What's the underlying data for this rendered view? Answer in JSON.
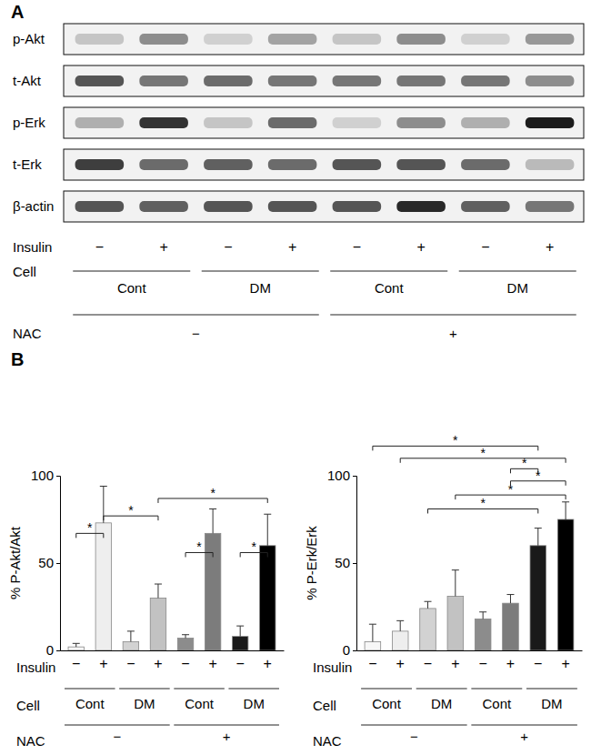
{
  "panels": [
    "A",
    "B"
  ],
  "blot": {
    "intensity_range": [
      0,
      100
    ],
    "rows": [
      {
        "label": "p-Akt",
        "intensity": [
          20,
          45,
          15,
          35,
          20,
          45,
          15,
          40
        ]
      },
      {
        "label": "t-Akt",
        "intensity": [
          70,
          55,
          60,
          55,
          55,
          55,
          55,
          45
        ]
      },
      {
        "label": "p-Erk",
        "intensity": [
          30,
          85,
          20,
          60,
          15,
          45,
          30,
          95
        ]
      },
      {
        "label": "t-Erk",
        "intensity": [
          80,
          60,
          65,
          60,
          70,
          70,
          60,
          25
        ]
      },
      {
        "label": "β-actin",
        "intensity": [
          70,
          65,
          70,
          70,
          70,
          90,
          65,
          55
        ]
      }
    ],
    "lane_rows": [
      {
        "label": "Insulin",
        "values": [
          "−",
          "+",
          "−",
          "+",
          "−",
          "+",
          "−",
          "+"
        ]
      },
      {
        "label": "Cell",
        "groups": [
          "Cont",
          "DM",
          "Cont",
          "DM"
        ]
      },
      {
        "label": "NAC",
        "groups": [
          "−",
          "+"
        ]
      }
    ]
  },
  "chart_data": [
    {
      "type": "bar",
      "ylabel": "% P-Akt/Akt",
      "xlabel": "Insulin",
      "categories": [
        "−",
        "+",
        "−",
        "+",
        "−",
        "+",
        "−",
        "+"
      ],
      "values": [
        2,
        73,
        5,
        30,
        7,
        67,
        8,
        60
      ],
      "errors": [
        2,
        21,
        6,
        8,
        2,
        14,
        6,
        18
      ],
      "colors": [
        "#f7f7f7",
        "#eeeeee",
        "#d2d2d2",
        "#c2c2c2",
        "#8c8c8c",
        "#7c7c7c",
        "#1a1a1a",
        "#000000"
      ],
      "ylim": [
        0,
        100
      ],
      "yticks": [
        0,
        50,
        100
      ],
      "x_groups": [
        {
          "label": "Cell",
          "names": [
            "Cont",
            "DM",
            "Cont",
            "DM"
          ]
        },
        {
          "label": "NAC",
          "names": [
            "−",
            "+"
          ]
        }
      ],
      "significance": [
        {
          "from": 0,
          "to": 1,
          "y": 67,
          "label": "*"
        },
        {
          "from": 1,
          "to": 3,
          "y": 77,
          "label": "*"
        },
        {
          "from": 3,
          "to": 7,
          "y": 87,
          "label": "*"
        },
        {
          "from": 4,
          "to": 5,
          "y": 56,
          "label": "*"
        },
        {
          "from": 6,
          "to": 7,
          "y": 56,
          "label": "*"
        }
      ]
    },
    {
      "type": "bar",
      "ylabel": "% P-Erk/Erk",
      "xlabel": "Insulin",
      "categories": [
        "−",
        "+",
        "−",
        "+",
        "−",
        "+",
        "−",
        "+"
      ],
      "values": [
        5,
        11,
        24,
        31,
        18,
        27,
        60,
        75
      ],
      "errors": [
        10,
        6,
        4,
        15,
        4,
        5,
        10,
        10
      ],
      "colors": [
        "#f7f7f7",
        "#eeeeee",
        "#d2d2d2",
        "#c2c2c2",
        "#8c8c8c",
        "#7c7c7c",
        "#1a1a1a",
        "#000000"
      ],
      "ylim": [
        0,
        100
      ],
      "yticks": [
        0,
        50,
        100
      ],
      "x_groups": [
        {
          "label": "Cell",
          "names": [
            "Cont",
            "DM",
            "Cont",
            "DM"
          ]
        },
        {
          "label": "NAC",
          "names": [
            "−",
            "+"
          ]
        }
      ],
      "significance": [
        {
          "from": 0,
          "to": 6,
          "y": 117,
          "label": "*"
        },
        {
          "from": 1,
          "to": 7,
          "y": 110,
          "label": "*"
        },
        {
          "from": 5,
          "to": 6,
          "y": 104,
          "label": "*"
        },
        {
          "from": 5,
          "to": 7,
          "y": 97,
          "label": "*"
        },
        {
          "from": 3,
          "to": 7,
          "y": 89,
          "label": "*"
        },
        {
          "from": 2,
          "to": 6,
          "y": 81,
          "label": "*"
        }
      ]
    }
  ]
}
